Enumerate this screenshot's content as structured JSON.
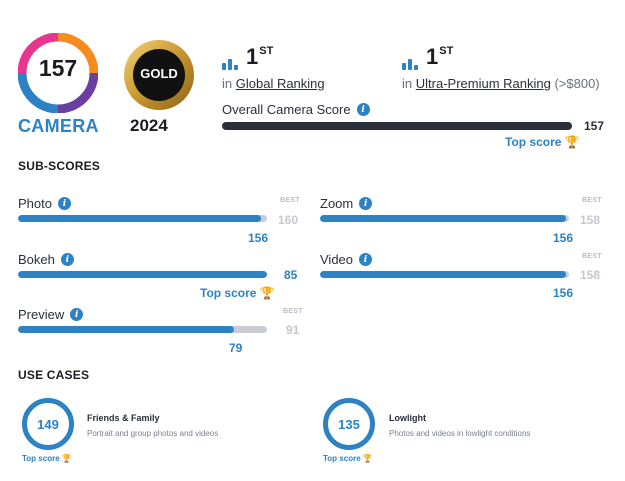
{
  "header": {
    "camera_score": "157",
    "camera_label": "CAMERA",
    "gold_label": "GOLD",
    "year": "2024",
    "badge_colors": [
      "#e8368f",
      "#f68b1f",
      "#2c82c3",
      "#6a3fa0"
    ]
  },
  "rankings": [
    {
      "rank": "1",
      "suffix": "ST",
      "prefix": "in",
      "link": "Global Ranking",
      "extra": ""
    },
    {
      "rank": "1",
      "suffix": "ST",
      "prefix": "in",
      "link": "Ultra-Premium Ranking",
      "extra": "(>$800)"
    }
  ],
  "overall": {
    "label": "Overall Camera Score",
    "value": "157",
    "fill_fraction": 1.0,
    "top_score_label": "Top score"
  },
  "subscores": {
    "title": "SUB-SCORES",
    "best_label": "BEST",
    "items": [
      {
        "name": "Photo",
        "value": "156",
        "best": "160",
        "fill_fraction": 0.975,
        "top_score": ""
      },
      {
        "name": "Zoom",
        "value": "156",
        "best": "158",
        "fill_fraction": 0.987,
        "top_score": ""
      },
      {
        "name": "Bokeh",
        "value": "85",
        "best": "",
        "fill_fraction": 1.0,
        "top_score": "Top score"
      },
      {
        "name": "Video",
        "value": "156",
        "best": "158",
        "fill_fraction": 0.987,
        "top_score": ""
      },
      {
        "name": "Preview",
        "value": "79",
        "best": "91",
        "fill_fraction": 0.868,
        "top_score": ""
      }
    ]
  },
  "use_cases": {
    "title": "USE CASES",
    "items": [
      {
        "score": "149",
        "title": "Friends & Family",
        "description": "Portrait and group photos and videos",
        "top_score": "Top score"
      },
      {
        "score": "135",
        "title": "Lowlight",
        "description": "Photos and videos in lowlight conditions",
        "top_score": "Top score"
      }
    ]
  }
}
